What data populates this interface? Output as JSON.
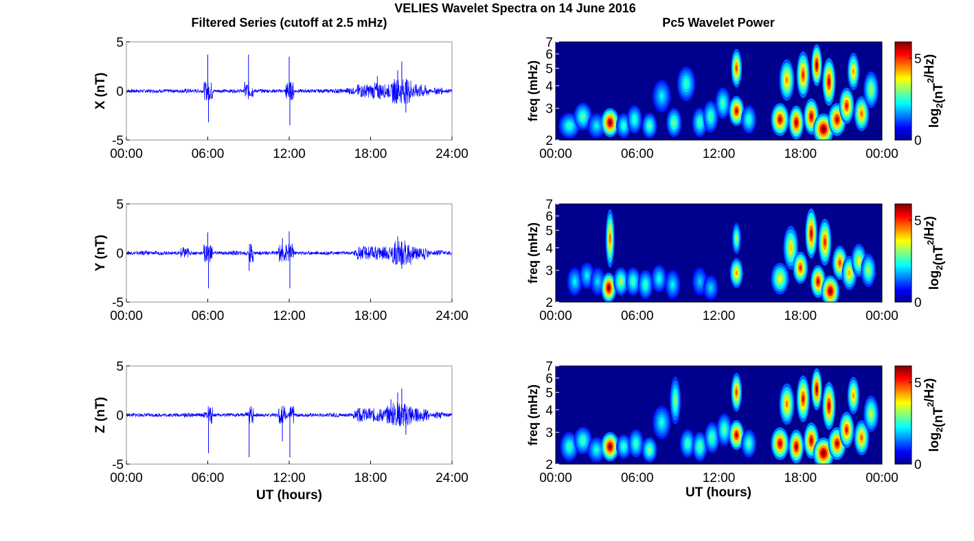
{
  "figure": {
    "suptitle": "VELIES Wavelet Spectra on 14 June 2016",
    "left_title": "Filtered Series (cutoff at 2.5 mHz)",
    "right_title": "Pc5 Wavelet Power",
    "xlabel": "UT (hours)",
    "colorbar_label_main": "log",
    "colorbar_label_sub": "2",
    "colorbar_label_rest1": "(nT",
    "colorbar_label_sup": "2",
    "colorbar_label_rest2": "/Hz)"
  },
  "colors": {
    "series_line": "#0000ff",
    "axes": "#000000",
    "spectrum_background": "#00008f"
  },
  "chart_data": [
    {
      "type": "line",
      "component": "X",
      "ylabel": "X (nT)",
      "xlim": [
        0,
        24
      ],
      "ylim": [
        -5,
        5
      ],
      "xticks": [
        "00:00",
        "06:00",
        "12:00",
        "18:00",
        "24:00"
      ],
      "yticks": [
        "-5",
        "0",
        "5"
      ],
      "series": [
        {
          "x_hours": [
            0,
            1.4,
            3,
            4.5,
            6,
            6.05,
            8,
            9,
            9.05,
            10.5,
            12,
            12.05,
            14,
            15.5,
            16.5,
            17.5,
            18.5,
            19.5,
            20,
            20.3,
            20.6,
            21,
            22,
            23,
            24
          ],
          "values": [
            0,
            0.2,
            0.1,
            0.4,
            3.7,
            -3.2,
            0.2,
            3.7,
            -1.2,
            0.3,
            3.5,
            -3.5,
            0.3,
            0.4,
            0.6,
            1.0,
            1.5,
            1.2,
            2.1,
            3.0,
            -2.2,
            1.3,
            1.0,
            0.6,
            0
          ]
        }
      ]
    },
    {
      "type": "line",
      "component": "Y",
      "ylabel": "Y (nT)",
      "xlim": [
        0,
        24
      ],
      "ylim": [
        -5,
        5
      ],
      "xticks": [
        "00:00",
        "06:00",
        "12:00",
        "18:00",
        "24:00"
      ],
      "yticks": [
        "-5",
        "0",
        "5"
      ],
      "series": [
        {
          "x_hours": [
            0,
            1.4,
            3,
            4.3,
            6,
            6.05,
            8,
            9,
            9.05,
            11.5,
            12,
            12.05,
            14,
            15.5,
            17,
            18.5,
            19.5,
            20,
            20.3,
            21,
            22,
            23,
            24
          ],
          "values": [
            0,
            0.4,
            0.3,
            1.0,
            2.1,
            -3.6,
            0.4,
            0.5,
            -1.8,
            1.5,
            2.2,
            -3.6,
            0.3,
            0.3,
            0.6,
            1.0,
            1.0,
            1.7,
            -1.6,
            0.9,
            0.8,
            0.5,
            0
          ]
        }
      ]
    },
    {
      "type": "line",
      "component": "Z",
      "ylabel": "Z (nT)",
      "xlim": [
        0,
        24
      ],
      "ylim": [
        -5,
        5
      ],
      "xticks": [
        "00:00",
        "06:00",
        "12:00",
        "18:00",
        "24:00"
      ],
      "yticks": [
        "-5",
        "0",
        "5"
      ],
      "series": [
        {
          "x_hours": [
            0,
            1.4,
            3,
            4.5,
            6,
            6.05,
            8,
            9,
            9.05,
            11.5,
            12,
            12.05,
            14,
            15.5,
            17,
            18.5,
            19.5,
            20,
            20.3,
            20.6,
            21,
            22,
            23,
            24
          ],
          "values": [
            0,
            0.2,
            0.1,
            0.4,
            0.5,
            -3.9,
            0.2,
            0.5,
            -4.3,
            -2.7,
            0.5,
            -4.3,
            0.3,
            0.4,
            0.7,
            1.2,
            1.6,
            2.3,
            2.7,
            -2.0,
            1.3,
            1.0,
            0.6,
            0
          ]
        }
      ]
    },
    {
      "type": "heatmap",
      "component": "X",
      "ylabel": "freq (mHz)",
      "xlim": [
        0,
        24
      ],
      "ylim": [
        2,
        7
      ],
      "yscale": "log",
      "xticks": [
        "00:00",
        "06:00",
        "12:00",
        "18:00",
        "00:00"
      ],
      "yticks": [
        "2",
        "3",
        "4",
        "5",
        "6",
        "7"
      ],
      "colorbar": {
        "range": [
          0,
          6
        ],
        "ticks": [
          "0",
          "5"
        ],
        "colormap": "jet"
      },
      "features": [
        {
          "t": 1.0,
          "f": 2.4,
          "power": 2.2,
          "dt": 0.35,
          "df": 0.4
        },
        {
          "t": 2.0,
          "f": 2.7,
          "power": 2.5,
          "dt": 0.3,
          "df": 0.5
        },
        {
          "t": 3.0,
          "f": 2.4,
          "power": 1.8,
          "dt": 0.3,
          "df": 0.4
        },
        {
          "t": 4.0,
          "f": 2.5,
          "power": 6.0,
          "dt": 0.3,
          "df": 0.5
        },
        {
          "t": 5.0,
          "f": 2.4,
          "power": 2.2,
          "dt": 0.25,
          "df": 0.4
        },
        {
          "t": 5.8,
          "f": 2.6,
          "power": 2.3,
          "dt": 0.25,
          "df": 0.5
        },
        {
          "t": 6.9,
          "f": 2.4,
          "power": 2.5,
          "dt": 0.25,
          "df": 0.4
        },
        {
          "t": 7.8,
          "f": 3.5,
          "power": 1.8,
          "dt": 0.3,
          "df": 0.8
        },
        {
          "t": 8.7,
          "f": 2.5,
          "power": 2.7,
          "dt": 0.25,
          "df": 0.5
        },
        {
          "t": 9.6,
          "f": 4.1,
          "power": 2.3,
          "dt": 0.3,
          "df": 1.0
        },
        {
          "t": 10.6,
          "f": 2.5,
          "power": 2.4,
          "dt": 0.25,
          "df": 0.5
        },
        {
          "t": 11.4,
          "f": 2.7,
          "power": 2.4,
          "dt": 0.25,
          "df": 0.6
        },
        {
          "t": 12.3,
          "f": 3.2,
          "power": 2.4,
          "dt": 0.25,
          "df": 0.7
        },
        {
          "t": 13.3,
          "f": 2.9,
          "power": 5.5,
          "dt": 0.25,
          "df": 0.6
        },
        {
          "t": 13.3,
          "f": 5.0,
          "power": 4.8,
          "dt": 0.18,
          "df": 1.4
        },
        {
          "t": 14.2,
          "f": 2.6,
          "power": 2.3,
          "dt": 0.25,
          "df": 0.5
        },
        {
          "t": 16.5,
          "f": 2.6,
          "power": 5.5,
          "dt": 0.3,
          "df": 0.6
        },
        {
          "t": 17.0,
          "f": 4.3,
          "power": 4.3,
          "dt": 0.25,
          "df": 1.3
        },
        {
          "t": 17.7,
          "f": 2.5,
          "power": 5.8,
          "dt": 0.25,
          "df": 0.6
        },
        {
          "t": 18.2,
          "f": 4.6,
          "power": 5.0,
          "dt": 0.22,
          "df": 1.6
        },
        {
          "t": 18.8,
          "f": 2.7,
          "power": 5.6,
          "dt": 0.25,
          "df": 0.7
        },
        {
          "t": 19.2,
          "f": 5.2,
          "power": 5.8,
          "dt": 0.18,
          "df": 1.6
        },
        {
          "t": 19.7,
          "f": 2.3,
          "power": 6.2,
          "dt": 0.35,
          "df": 0.5
        },
        {
          "t": 20.1,
          "f": 4.2,
          "power": 5.5,
          "dt": 0.22,
          "df": 1.5
        },
        {
          "t": 20.7,
          "f": 2.6,
          "power": 5.6,
          "dt": 0.3,
          "df": 0.6
        },
        {
          "t": 21.4,
          "f": 3.1,
          "power": 5.2,
          "dt": 0.25,
          "df": 0.8
        },
        {
          "t": 21.9,
          "f": 4.8,
          "power": 4.2,
          "dt": 0.2,
          "df": 1.3
        },
        {
          "t": 22.5,
          "f": 2.8,
          "power": 4.5,
          "dt": 0.25,
          "df": 0.7
        },
        {
          "t": 23.2,
          "f": 3.8,
          "power": 3.0,
          "dt": 0.25,
          "df": 1.0
        }
      ]
    },
    {
      "type": "heatmap",
      "component": "Y",
      "ylabel": "freq (mHz)",
      "xlim": [
        0,
        24
      ],
      "ylim": [
        2,
        7
      ],
      "yscale": "log",
      "xticks": [
        "00:00",
        "06:00",
        "12:00",
        "18:00",
        "00:00"
      ],
      "yticks": [
        "2",
        "3",
        "4",
        "5",
        "6",
        "7"
      ],
      "colorbar": {
        "range": [
          0,
          6
        ],
        "ticks": [
          "0",
          "5"
        ],
        "colormap": "jet"
      },
      "features": [
        {
          "t": 1.4,
          "f": 2.6,
          "power": 1.8,
          "dt": 0.25,
          "df": 0.5
        },
        {
          "t": 2.3,
          "f": 2.8,
          "power": 1.8,
          "dt": 0.25,
          "df": 0.5
        },
        {
          "t": 3.1,
          "f": 2.6,
          "power": 1.6,
          "dt": 0.25,
          "df": 0.5
        },
        {
          "t": 3.9,
          "f": 2.4,
          "power": 6.0,
          "dt": 0.25,
          "df": 0.5
        },
        {
          "t": 4.0,
          "f": 4.5,
          "power": 4.5,
          "dt": 0.15,
          "df": 2.0
        },
        {
          "t": 4.8,
          "f": 2.6,
          "power": 3.0,
          "dt": 0.25,
          "df": 0.5
        },
        {
          "t": 5.7,
          "f": 2.6,
          "power": 2.4,
          "dt": 0.25,
          "df": 0.5
        },
        {
          "t": 6.6,
          "f": 2.5,
          "power": 2.3,
          "dt": 0.25,
          "df": 0.5
        },
        {
          "t": 7.6,
          "f": 2.7,
          "power": 2.0,
          "dt": 0.25,
          "df": 0.5
        },
        {
          "t": 8.6,
          "f": 2.5,
          "power": 1.8,
          "dt": 0.25,
          "df": 0.5
        },
        {
          "t": 10.6,
          "f": 2.6,
          "power": 1.5,
          "dt": 0.25,
          "df": 0.5
        },
        {
          "t": 11.4,
          "f": 2.4,
          "power": 1.6,
          "dt": 0.25,
          "df": 0.4
        },
        {
          "t": 13.3,
          "f": 2.9,
          "power": 4.2,
          "dt": 0.22,
          "df": 0.6
        },
        {
          "t": 13.3,
          "f": 4.5,
          "power": 3.0,
          "dt": 0.15,
          "df": 1.0
        },
        {
          "t": 16.5,
          "f": 2.7,
          "power": 3.5,
          "dt": 0.3,
          "df": 0.6
        },
        {
          "t": 17.3,
          "f": 4.0,
          "power": 3.8,
          "dt": 0.25,
          "df": 1.3
        },
        {
          "t": 18.0,
          "f": 3.1,
          "power": 5.0,
          "dt": 0.25,
          "df": 0.7
        },
        {
          "t": 18.8,
          "f": 4.8,
          "power": 5.5,
          "dt": 0.2,
          "df": 1.8
        },
        {
          "t": 19.3,
          "f": 2.6,
          "power": 5.5,
          "dt": 0.25,
          "df": 0.6
        },
        {
          "t": 19.8,
          "f": 4.3,
          "power": 5.0,
          "dt": 0.22,
          "df": 1.5
        },
        {
          "t": 20.2,
          "f": 2.3,
          "power": 6.0,
          "dt": 0.3,
          "df": 0.5
        },
        {
          "t": 20.9,
          "f": 3.3,
          "power": 4.8,
          "dt": 0.25,
          "df": 0.8
        },
        {
          "t": 21.6,
          "f": 2.9,
          "power": 4.0,
          "dt": 0.25,
          "df": 0.7
        },
        {
          "t": 22.3,
          "f": 3.4,
          "power": 3.5,
          "dt": 0.25,
          "df": 0.8
        },
        {
          "t": 23.0,
          "f": 3.0,
          "power": 3.0,
          "dt": 0.25,
          "df": 0.7
        }
      ]
    },
    {
      "type": "heatmap",
      "component": "Z",
      "ylabel": "freq (mHz)",
      "xlim": [
        0,
        24
      ],
      "ylim": [
        2,
        7
      ],
      "yscale": "log",
      "xticks": [
        "00:00",
        "06:00",
        "12:00",
        "18:00",
        "00:00"
      ],
      "yticks": [
        "2",
        "3",
        "4",
        "5",
        "6",
        "7"
      ],
      "colorbar": {
        "range": [
          0,
          6
        ],
        "ticks": [
          "0",
          "5"
        ],
        "colormap": "jet"
      },
      "features": [
        {
          "t": 1.0,
          "f": 2.5,
          "power": 2.3,
          "dt": 0.3,
          "df": 0.5
        },
        {
          "t": 2.0,
          "f": 2.7,
          "power": 2.4,
          "dt": 0.3,
          "df": 0.5
        },
        {
          "t": 3.0,
          "f": 2.4,
          "power": 2.0,
          "dt": 0.3,
          "df": 0.4
        },
        {
          "t": 4.0,
          "f": 2.5,
          "power": 6.0,
          "dt": 0.3,
          "df": 0.5
        },
        {
          "t": 5.0,
          "f": 2.5,
          "power": 2.3,
          "dt": 0.25,
          "df": 0.4
        },
        {
          "t": 5.9,
          "f": 2.6,
          "power": 2.4,
          "dt": 0.25,
          "df": 0.5
        },
        {
          "t": 6.9,
          "f": 2.4,
          "power": 2.8,
          "dt": 0.25,
          "df": 0.4
        },
        {
          "t": 7.8,
          "f": 3.4,
          "power": 2.0,
          "dt": 0.3,
          "df": 0.8
        },
        {
          "t": 8.8,
          "f": 4.5,
          "power": 2.8,
          "dt": 0.18,
          "df": 1.6
        },
        {
          "t": 9.7,
          "f": 2.6,
          "power": 2.4,
          "dt": 0.25,
          "df": 0.5
        },
        {
          "t": 10.6,
          "f": 2.5,
          "power": 2.6,
          "dt": 0.25,
          "df": 0.5
        },
        {
          "t": 11.5,
          "f": 2.8,
          "power": 2.5,
          "dt": 0.25,
          "df": 0.6
        },
        {
          "t": 12.4,
          "f": 3.1,
          "power": 2.5,
          "dt": 0.25,
          "df": 0.7
        },
        {
          "t": 13.3,
          "f": 2.9,
          "power": 5.6,
          "dt": 0.25,
          "df": 0.6
        },
        {
          "t": 13.3,
          "f": 5.0,
          "power": 4.8,
          "dt": 0.18,
          "df": 1.4
        },
        {
          "t": 14.2,
          "f": 2.6,
          "power": 2.4,
          "dt": 0.25,
          "df": 0.5
        },
        {
          "t": 16.5,
          "f": 2.6,
          "power": 5.6,
          "dt": 0.3,
          "df": 0.6
        },
        {
          "t": 17.0,
          "f": 4.3,
          "power": 4.4,
          "dt": 0.25,
          "df": 1.3
        },
        {
          "t": 17.7,
          "f": 2.5,
          "power": 5.8,
          "dt": 0.25,
          "df": 0.6
        },
        {
          "t": 18.2,
          "f": 4.6,
          "power": 5.2,
          "dt": 0.22,
          "df": 1.6
        },
        {
          "t": 18.8,
          "f": 2.7,
          "power": 5.6,
          "dt": 0.25,
          "df": 0.7
        },
        {
          "t": 19.2,
          "f": 5.2,
          "power": 5.8,
          "dt": 0.18,
          "df": 1.6
        },
        {
          "t": 19.7,
          "f": 2.3,
          "power": 6.2,
          "dt": 0.35,
          "df": 0.5
        },
        {
          "t": 20.1,
          "f": 4.2,
          "power": 5.5,
          "dt": 0.22,
          "df": 1.5
        },
        {
          "t": 20.7,
          "f": 2.6,
          "power": 5.6,
          "dt": 0.3,
          "df": 0.6
        },
        {
          "t": 21.4,
          "f": 3.1,
          "power": 5.2,
          "dt": 0.25,
          "df": 0.8
        },
        {
          "t": 21.9,
          "f": 4.8,
          "power": 4.2,
          "dt": 0.2,
          "df": 1.3
        },
        {
          "t": 22.5,
          "f": 2.8,
          "power": 4.6,
          "dt": 0.25,
          "df": 0.7
        },
        {
          "t": 23.2,
          "f": 3.8,
          "power": 3.2,
          "dt": 0.25,
          "df": 1.0
        }
      ]
    }
  ]
}
